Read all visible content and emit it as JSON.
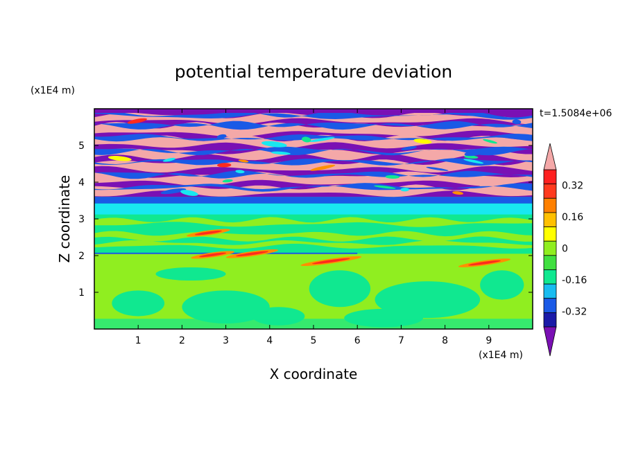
{
  "chart_data": {
    "type": "heatmap",
    "title": "potential temperature deviation",
    "xlabel": "X coordinate",
    "ylabel": "Z coordinate",
    "x_unit": "(x1E4 m)",
    "y_unit": "(x1E4 m)",
    "time_label": "t=1.5084e+06",
    "x_ticks": [
      1,
      2,
      3,
      4,
      5,
      6,
      7,
      8,
      9
    ],
    "y_ticks": [
      1,
      2,
      3,
      4,
      5
    ],
    "xlim": [
      0,
      10
    ],
    "ylim": [
      0,
      6
    ],
    "colorbar": {
      "levels": [
        -0.48,
        -0.4,
        -0.32,
        -0.24,
        -0.16,
        -0.08,
        0,
        0.08,
        0.16,
        0.24,
        0.32,
        0.4,
        0.48
      ],
      "labels": [
        "0.32",
        "0.16",
        "0",
        "-0.16",
        "-0.32"
      ],
      "label_values": [
        0.32,
        0.16,
        0,
        -0.16,
        -0.32
      ],
      "colors": [
        "#7a10b4",
        "#1a1aa8",
        "#1a5ae6",
        "#18bcf0",
        "#10e890",
        "#40e040",
        "#90ee20",
        "#ffff00",
        "#ffc000",
        "#ff8000",
        "#ff3a1e",
        "#ff2020",
        "#f4a8a8"
      ],
      "extend": "both"
    },
    "bands": [
      {
        "z": [
          0.0,
          0.55
        ],
        "description": "green/lime mixed"
      },
      {
        "z": [
          0.55,
          1.7
        ],
        "description": "lime with green eddies"
      },
      {
        "z": [
          1.7,
          2.05
        ],
        "description": "lime with red streaks near x=2.5, 5.5, 9"
      },
      {
        "z": [
          2.05,
          2.1
        ],
        "description": "thin blue line"
      },
      {
        "z": [
          2.1,
          3.1
        ],
        "description": "green with lime streaks"
      },
      {
        "z": [
          3.1,
          3.4
        ],
        "description": "cyan layer"
      },
      {
        "z": [
          3.4,
          3.6
        ],
        "description": "blue layer"
      },
      {
        "z": [
          3.6,
          6.0
        ],
        "description": "alternating purple and pink layers"
      }
    ]
  }
}
